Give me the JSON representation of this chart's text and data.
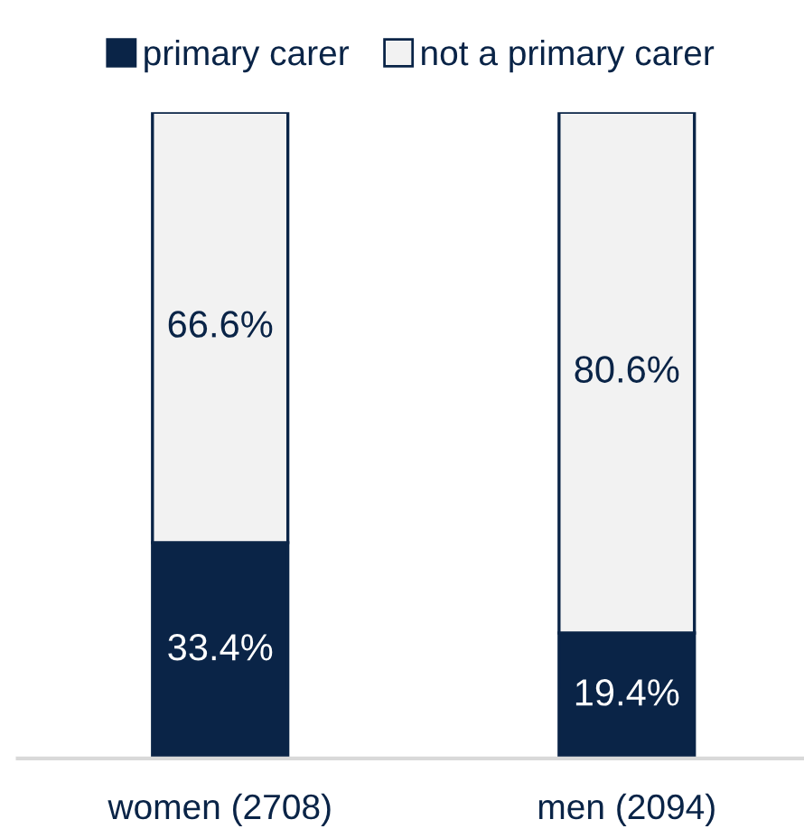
{
  "chart_data": {
    "type": "bar",
    "stacked": true,
    "categories": [
      "women (2708)",
      "men (2094)"
    ],
    "series": [
      {
        "name": "primary carer",
        "color": "#0a2447",
        "values": [
          33.4,
          19.4
        ],
        "value_labels": [
          "33.4%",
          "19.4%"
        ]
      },
      {
        "name": "not a primary carer",
        "color": "#f2f2f2",
        "values": [
          66.6,
          80.6
        ],
        "value_labels": [
          "66.6%",
          "80.6%"
        ]
      }
    ],
    "ylim": [
      0,
      100
    ],
    "tick_labels": "x",
    "grid": false,
    "legend": "top"
  }
}
